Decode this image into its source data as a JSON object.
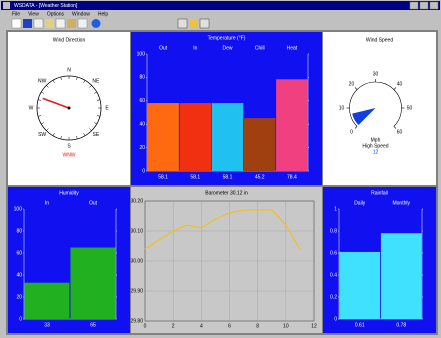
{
  "window": {
    "title": "WSDATA - [Weather Station]",
    "menu": [
      "File",
      "View",
      "Options",
      "Window",
      "Help"
    ]
  },
  "chart_data": [
    {
      "type": "compass",
      "title": "Wind Direction",
      "labels": [
        "N",
        "NE",
        "E",
        "SE",
        "S",
        "SW",
        "W",
        "NW"
      ],
      "value": 290,
      "direction": "WNW",
      "color": "#e02020"
    },
    {
      "type": "bar",
      "title": "Temperature (°F)",
      "categories": [
        "Out",
        "In",
        "Dew",
        "Chill",
        "Heat"
      ],
      "values": [
        58.1,
        58.1,
        58.1,
        45.2,
        78.4
      ],
      "colors": [
        "#ff6a10",
        "#f03010",
        "#20c0f0",
        "#a04010",
        "#f04080"
      ],
      "ylim": [
        0,
        100
      ],
      "yticks": [
        0,
        20,
        40,
        60,
        80,
        100
      ]
    },
    {
      "type": "gauge",
      "title": "Wind Speed",
      "value": 7,
      "ylim": [
        0,
        60
      ],
      "yticks": [
        0,
        10,
        20,
        30,
        40,
        50,
        60
      ],
      "unit": "Mph",
      "subtitle": "High Speed",
      "high": 12,
      "color": "#1040e0"
    },
    {
      "type": "bar",
      "title": "Humidity",
      "categories": [
        "In",
        "Out"
      ],
      "values": [
        33,
        65
      ],
      "colors": [
        "#20b020",
        "#20b020"
      ],
      "ylim": [
        0,
        100
      ],
      "yticks": [
        0,
        20,
        40,
        60,
        80,
        100
      ]
    },
    {
      "type": "line",
      "title": "Barometer 30.12 in",
      "x": [
        0,
        1,
        2,
        3,
        4,
        5,
        6,
        7,
        8,
        9,
        10,
        11
      ],
      "values": [
        30.04,
        30.07,
        30.1,
        30.12,
        30.11,
        30.14,
        30.16,
        30.17,
        30.17,
        30.17,
        30.12,
        30.04
      ],
      "color": "#f0c020",
      "xlim": [
        0,
        12
      ],
      "xticks": [
        0,
        2,
        4,
        6,
        8,
        10,
        12
      ],
      "ylim": [
        29.8,
        30.2
      ],
      "yticks": [
        {
          "value": 29.8,
          "label": "29.80"
        },
        {
          "value": 29.9,
          "label": "29.90"
        },
        {
          "value": 30,
          "label": "30.00"
        },
        {
          "value": 30.1,
          "label": "30.10"
        },
        {
          "value": 30.2,
          "label": "30.20"
        }
      ],
      "grid": true
    },
    {
      "type": "bar",
      "title": "Rainfall",
      "categories": [
        "Daily",
        "Monthly"
      ],
      "values": [
        0.61,
        0.78
      ],
      "colors": [
        "#40e0ff",
        "#40e0ff"
      ],
      "ylim": [
        0,
        1
      ],
      "yticks": [
        0,
        0.2,
        0.4,
        0.6,
        0.8,
        1
      ]
    }
  ]
}
